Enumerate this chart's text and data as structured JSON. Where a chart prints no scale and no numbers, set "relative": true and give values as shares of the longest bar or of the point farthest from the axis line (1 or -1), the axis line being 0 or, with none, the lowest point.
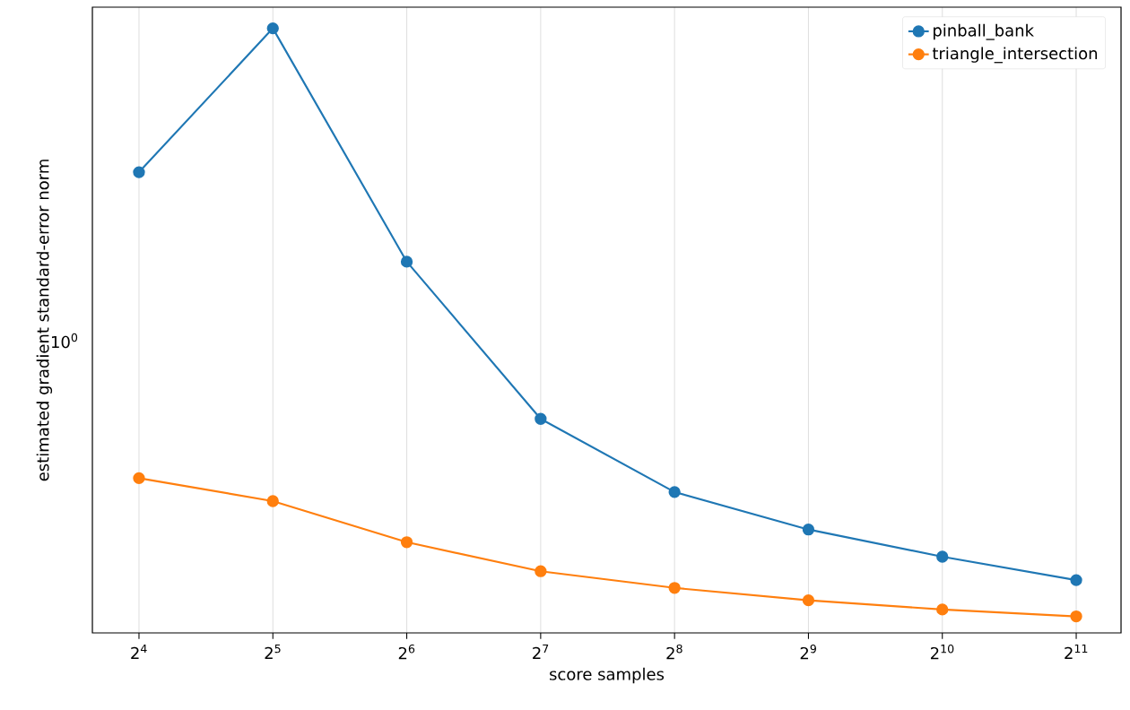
{
  "chart_data": {
    "type": "line",
    "xlabel": "score samples",
    "ylabel": "estimated gradient standard-error norm",
    "x": [
      16,
      32,
      64,
      128,
      256,
      512,
      1024,
      2048
    ],
    "relative": true,
    "series": [
      {
        "name": "pinball_bank",
        "color": "#1f77b4",
        "values": [
          0.762,
          1,
          0.614,
          0.354,
          0.233,
          0.171,
          0.126,
          0.0873
        ]
      },
      {
        "name": "triangle_intersection",
        "color": "#ff7f0e",
        "values": [
          0.256,
          0.218,
          0.15,
          0.102,
          0.0744,
          0.0539,
          0.0387,
          0.0273
        ]
      }
    ],
    "log": "x",
    "xlim": [
      12.57,
      2583
    ],
    "xticks": [
      {
        "value": 16,
        "label": "2$^{4}$"
      },
      {
        "value": 32,
        "label": "2$^{5}$"
      },
      {
        "value": 64,
        "label": "2$^{6}$"
      },
      {
        "value": 128,
        "label": "2$^{7}$"
      },
      {
        "value": 256,
        "label": "2$^{8}$"
      },
      {
        "value": 512,
        "label": "2$^{9}$"
      },
      {
        "value": 1024,
        "label": "2$^{10}$"
      },
      {
        "value": 2048,
        "label": "2$^{11}$"
      }
    ],
    "annotations": [
      "10$^{0}$"
    ],
    "grid": "x",
    "legend": "top right",
    "marker": "circle",
    "line_style": "solid"
  }
}
